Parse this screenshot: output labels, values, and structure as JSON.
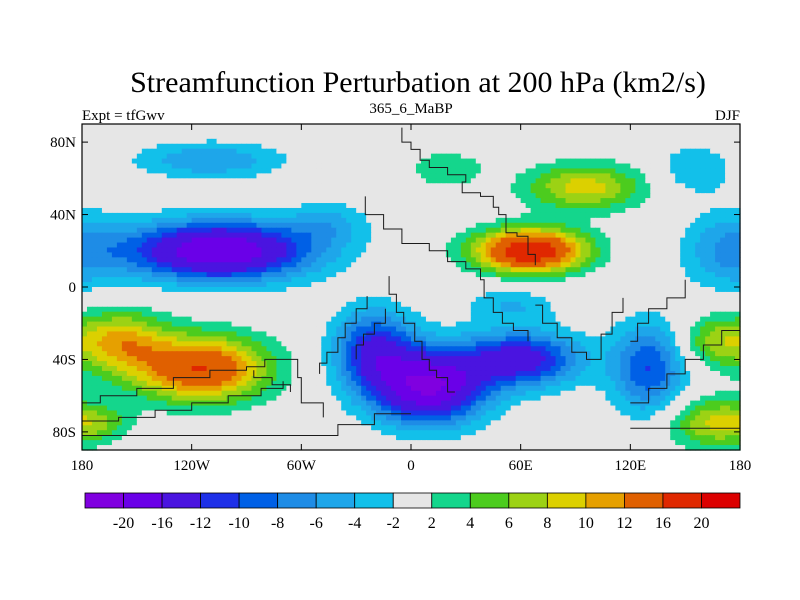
{
  "chart_data": {
    "type": "contour-map",
    "title": "Streamfunction Perturbation at 200 hPa (km2/s)",
    "left_label": "Expt = tfGwv",
    "center_label": "365_6_MaBP",
    "right_label": "DJF",
    "lon_range": [
      -180,
      180
    ],
    "lat_range": [
      -90,
      90
    ],
    "x_ticks": [
      {
        "value": -180,
        "label": "180"
      },
      {
        "value": -120,
        "label": "120W"
      },
      {
        "value": -60,
        "label": "60W"
      },
      {
        "value": 0,
        "label": "0"
      },
      {
        "value": 60,
        "label": "60E"
      },
      {
        "value": 120,
        "label": "120E"
      },
      {
        "value": 180,
        "label": "180"
      }
    ],
    "y_ticks": [
      {
        "value": 80,
        "label": "80N"
      },
      {
        "value": 40,
        "label": "40N"
      },
      {
        "value": 0,
        "label": "0"
      },
      {
        "value": -40,
        "label": "40S"
      },
      {
        "value": -80,
        "label": "80S"
      }
    ],
    "levels": [
      -20,
      -16,
      -12,
      -10,
      -8,
      -6,
      -4,
      -2,
      2,
      4,
      6,
      8,
      10,
      12,
      16,
      20
    ],
    "level_labels": [
      "-20",
      "-16",
      "-12",
      "-10",
      "-8",
      "-6",
      "-4",
      "-2",
      "2",
      "4",
      "6",
      "8",
      "10",
      "12",
      "16",
      "20"
    ],
    "colors": [
      "#8000e0",
      "#6a00e8",
      "#4a14e0",
      "#1e30e8",
      "#0060e6",
      "#1e8ce6",
      "#1ea6ea",
      "#12c0ea",
      "#e6e6e6",
      "#14d68c",
      "#4ccc1e",
      "#9cd214",
      "#dcd000",
      "#e6a000",
      "#e06000",
      "#e02800",
      "#dc0000"
    ],
    "centers": [
      {
        "lon": -105,
        "lat": 20,
        "amp": -20,
        "rlon": 50,
        "rlat": 16
      },
      {
        "lon": -110,
        "lat": 70,
        "amp": -6,
        "rlon": 40,
        "rlat": 10
      },
      {
        "lon": -45,
        "lat": 35,
        "amp": -4,
        "rlon": 22,
        "rlat": 12
      },
      {
        "lon": 175,
        "lat": 20,
        "amp": -6,
        "rlon": 26,
        "rlat": 22
      },
      {
        "lon": 155,
        "lat": 65,
        "amp": -4,
        "rlon": 20,
        "rlat": 14
      },
      {
        "lon": 65,
        "lat": 20,
        "amp": 20,
        "rlon": 30,
        "rlat": 12
      },
      {
        "lon": 95,
        "lat": 55,
        "amp": 9,
        "rlon": 32,
        "rlat": 13
      },
      {
        "lon": 20,
        "lat": 65,
        "amp": 4,
        "rlon": 20,
        "rlat": 10
      },
      {
        "lon": -115,
        "lat": -45,
        "amp": 16,
        "rlon": 36,
        "rlat": 18
      },
      {
        "lon": -160,
        "lat": -30,
        "amp": 10,
        "rlon": 25,
        "rlat": 17
      },
      {
        "lon": 10,
        "lat": -55,
        "amp": -20,
        "rlon": 30,
        "rlat": 20
      },
      {
        "lon": -20,
        "lat": -35,
        "amp": -12,
        "rlon": 22,
        "rlat": 22
      },
      {
        "lon": 60,
        "lat": -40,
        "amp": -14,
        "rlon": 32,
        "rlat": 15
      },
      {
        "lon": 130,
        "lat": -45,
        "amp": -10,
        "rlon": 20,
        "rlat": 25
      },
      {
        "lon": 55,
        "lat": -10,
        "amp": -4,
        "rlon": 25,
        "rlat": 10
      },
      {
        "lon": 165,
        "lat": -75,
        "amp": 8,
        "rlon": 25,
        "rlat": 14
      },
      {
        "lon": 165,
        "lat": -30,
        "amp": 6,
        "rlon": 18,
        "rlat": 14
      },
      {
        "lon": -170,
        "lat": -75,
        "amp": 4,
        "rlon": 18,
        "rlat": 10
      }
    ]
  }
}
